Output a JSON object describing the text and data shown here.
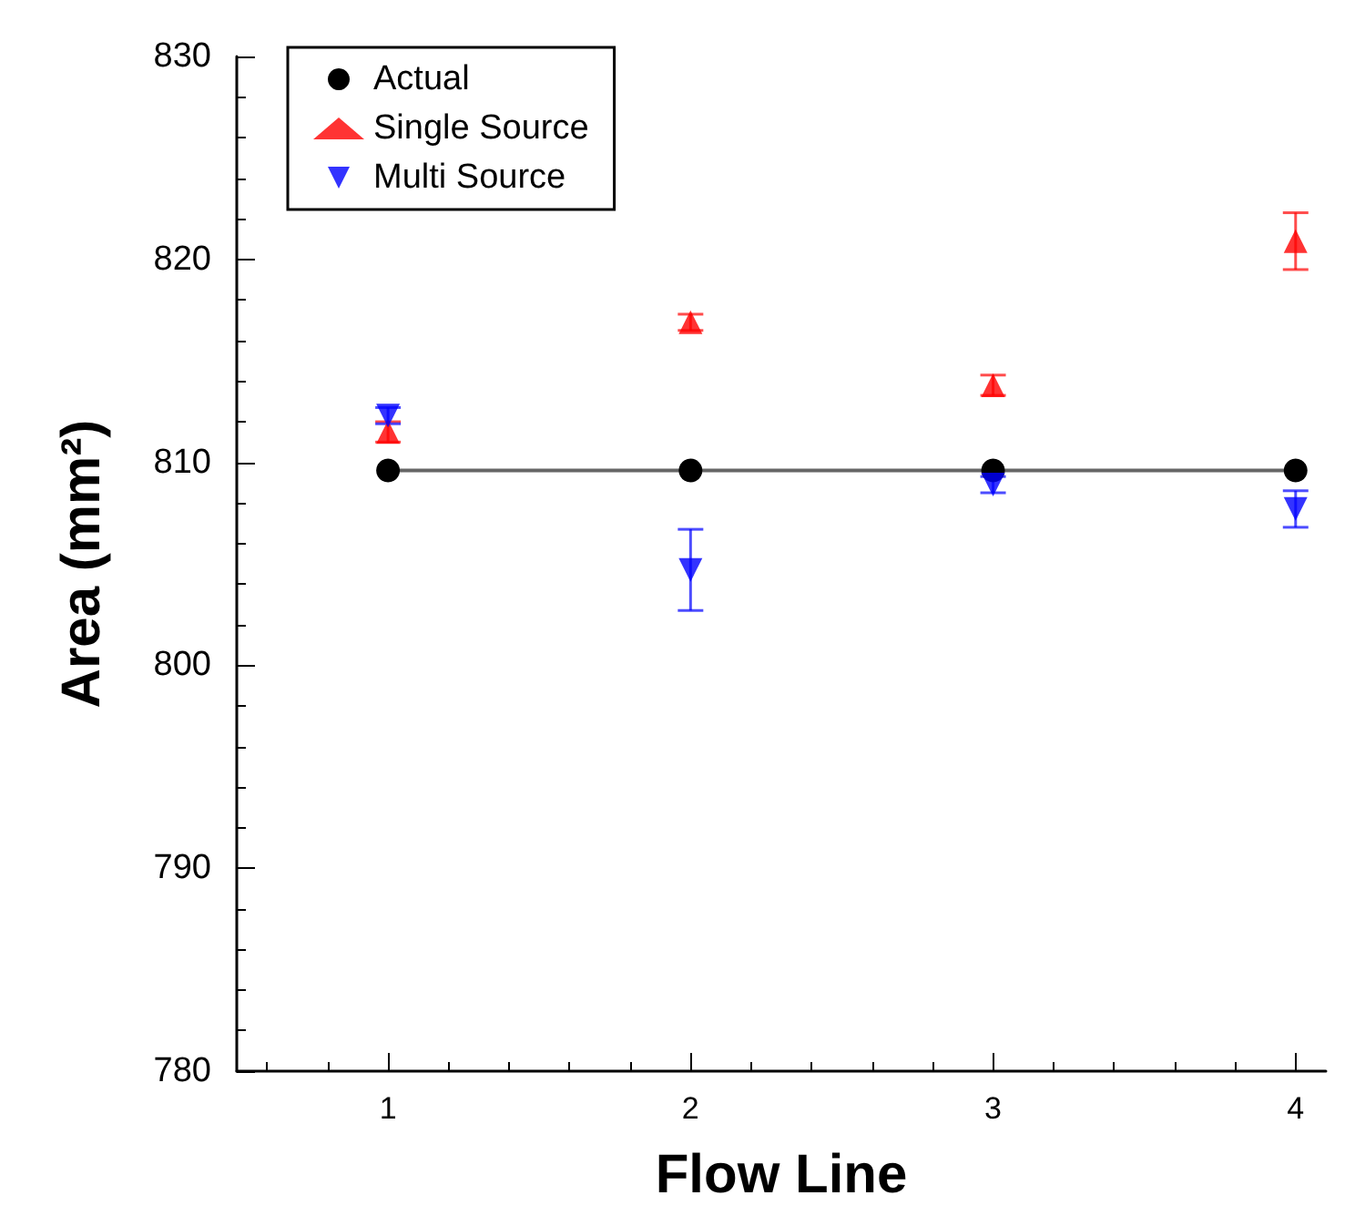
{
  "chart_data": {
    "type": "scatter",
    "xlabel": "Flow Line",
    "ylabel": "Area (mm²)",
    "x": [
      1,
      2,
      3,
      4
    ],
    "series": [
      {
        "name": "Actual",
        "type": "line",
        "color": "#000000",
        "marker": "circle",
        "values": [
          809.6,
          809.6,
          809.6,
          809.6
        ]
      },
      {
        "name": "Single Source",
        "color": "#ff0000",
        "marker": "triangle",
        "values": [
          811.5,
          816.9,
          813.8,
          820.9
        ],
        "errors": [
          0.5,
          0.4,
          0.5,
          1.4
        ]
      },
      {
        "name": "Multi Source",
        "color": "#0000ff",
        "marker": "triangle-down",
        "values": [
          812.3,
          804.7,
          808.9,
          807.7
        ],
        "errors": [
          0.4,
          2.0,
          0.4,
          0.9
        ]
      }
    ],
    "xlim": [
      0.5,
      4.1
    ],
    "xticks": [
      1,
      2,
      3,
      4
    ],
    "ylim": [
      780,
      830
    ],
    "yticks": [
      780,
      790,
      800,
      810,
      820,
      830
    ],
    "grid": false,
    "legend": "top left"
  }
}
